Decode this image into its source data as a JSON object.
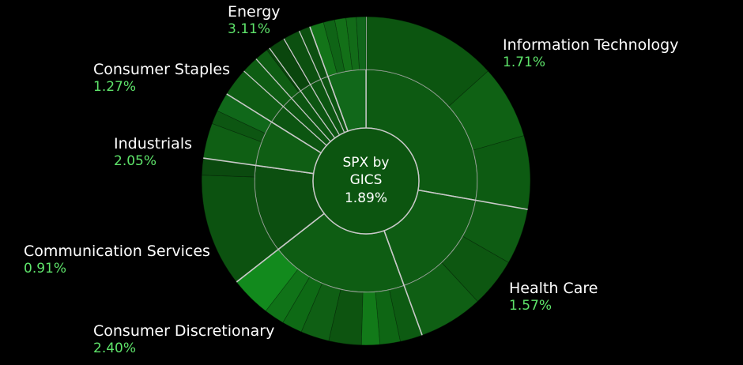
{
  "chart_data": {
    "type": "sunburst",
    "center": {
      "line1": "SPX by",
      "line2": "GICS",
      "value": "1.89%"
    },
    "sectors": [
      {
        "name": "Information Technology",
        "change": "1.71%",
        "color": "#0d5a12",
        "segments": [
          {
            "color": "#0c5510"
          },
          {
            "color": "#0f6114"
          },
          {
            "color": "#0d5b12"
          }
        ]
      },
      {
        "name": "Health Care",
        "change": "1.57%",
        "color": "#0e5c13",
        "segments": [
          {
            "color": "#0e5c13"
          },
          {
            "color": "#0d5711"
          },
          {
            "color": "#0f5f14"
          }
        ]
      },
      {
        "name": "Consumer Discretionary",
        "change": "2.40%",
        "color": "#0e5d13",
        "segments": [
          {
            "color": "#0d5b12"
          },
          {
            "color": "#0e6614"
          },
          {
            "color": "#127a19"
          },
          {
            "color": "#0d5410"
          },
          {
            "color": "#0f5f14"
          },
          {
            "color": "#0e6a15"
          },
          {
            "color": "#107318"
          },
          {
            "color": "#128a1d"
          }
        ]
      },
      {
        "name": "Communication Services",
        "change": "0.91%",
        "color": "#0c4f10",
        "segments": [
          {
            "color": "#0c5210"
          },
          {
            "color": "#0b4a0f"
          }
        ]
      },
      {
        "name": "Industrials",
        "change": "2.05%",
        "color": "#0f5e14",
        "segments": [
          {
            "color": "#0f5f14"
          },
          {
            "color": "#0d5612"
          },
          {
            "color": "#10681a"
          }
        ]
      },
      {
        "name": "Consumer Staples",
        "change": "1.27%",
        "color": "#0c5511",
        "segments": [
          {
            "color": "#0e5d13"
          },
          {
            "color": "#0a460d"
          },
          {
            "color": "#0c5010"
          }
        ]
      },
      {
        "name": "Energy",
        "change": "3.11%",
        "color": "#11681a",
        "segments": [
          {
            "color": "#137419"
          },
          {
            "color": "#0f6416"
          },
          {
            "color": "#137018"
          },
          {
            "color": "#126b18"
          },
          {
            "color": "#10661a"
          }
        ]
      }
    ]
  }
}
